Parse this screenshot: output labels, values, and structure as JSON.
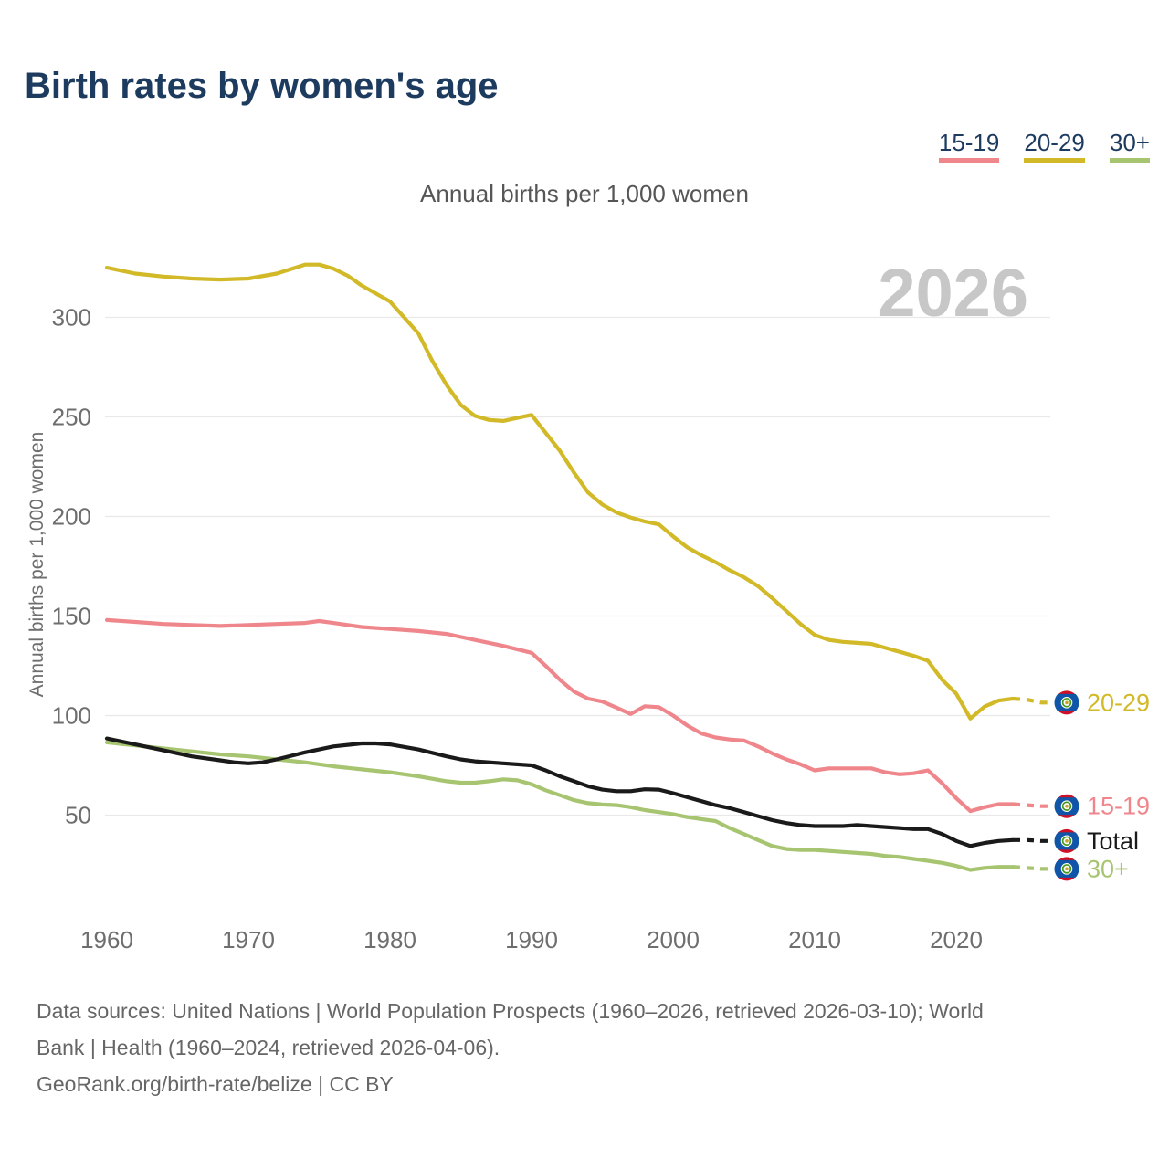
{
  "header": {
    "title": "Birth rates by women's age",
    "subtitle": "Annual births per 1,000 women"
  },
  "legend": {
    "items": [
      {
        "label": "15-19",
        "color": "#ef868b"
      },
      {
        "label": "20-29",
        "color": "#d2b927"
      },
      {
        "label": "30+",
        "color": "#a7c471"
      }
    ]
  },
  "watermark": "2026",
  "footer": {
    "sources_line1": "Data sources: United Nations | World Population Prospects (1960–2026, retrieved 2026-03-10); World",
    "sources_line2": "Bank | Health (1960–2024, retrieved 2026-04-06).",
    "attribution": "GeoRank.org/birth-rate/belize | CC BY"
  },
  "chart_data": {
    "type": "line",
    "title": "Birth rates by women's age",
    "subtitle": "Annual births per 1,000 women",
    "ylabel": "Annual births per 1,000 women",
    "xlabel": "",
    "x_ticks": [
      1960,
      1970,
      1980,
      1990,
      2000,
      2010,
      2020
    ],
    "y_ticks": [
      50,
      100,
      150,
      200,
      250,
      300
    ],
    "xlim": [
      1960,
      2026
    ],
    "ylim": [
      0,
      340
    ],
    "grid": "horizontal",
    "legend_position": "top-right",
    "projection_dashed_from": 2024,
    "endpoint_marker": "belize-flag-roundel",
    "flag_colors": {
      "blue": "#1155a8",
      "red": "#ce1126",
      "ring_green": "#44991c",
      "white": "#ffffff",
      "center": "#c8a22a"
    },
    "grid_color": "#e9e9e9",
    "tick_color": "#6e6e6e",
    "watermark_color": "#c7c7c7",
    "series": [
      {
        "name": "15-19",
        "color": "#ef868b",
        "end_label": "15-19",
        "points": [
          [
            1960,
            148
          ],
          [
            1962,
            147
          ],
          [
            1964,
            146
          ],
          [
            1966,
            145.5
          ],
          [
            1968,
            145
          ],
          [
            1970,
            145.5
          ],
          [
            1972,
            146
          ],
          [
            1974,
            146.5
          ],
          [
            1975,
            147.5
          ],
          [
            1976,
            146.5
          ],
          [
            1978,
            144.5
          ],
          [
            1980,
            143.5
          ],
          [
            1982,
            142.5
          ],
          [
            1984,
            141
          ],
          [
            1986,
            138
          ],
          [
            1988,
            135
          ],
          [
            1990,
            131.5
          ],
          [
            1991,
            125
          ],
          [
            1992,
            118
          ],
          [
            1993,
            112
          ],
          [
            1994,
            108.5
          ],
          [
            1995,
            107
          ],
          [
            1996,
            104
          ],
          [
            1997,
            100.8
          ],
          [
            1998,
            104.7
          ],
          [
            1999,
            104.2
          ],
          [
            2000,
            100
          ],
          [
            2001,
            95
          ],
          [
            2002,
            91
          ],
          [
            2003,
            89
          ],
          [
            2004,
            88
          ],
          [
            2005,
            87.5
          ],
          [
            2006,
            84.5
          ],
          [
            2007,
            81
          ],
          [
            2008,
            78
          ],
          [
            2009,
            75.5
          ],
          [
            2010,
            72.5
          ],
          [
            2011,
            73.5
          ],
          [
            2012,
            73.5
          ],
          [
            2013,
            73.5
          ],
          [
            2014,
            73.5
          ],
          [
            2015,
            71.5
          ],
          [
            2016,
            70.5
          ],
          [
            2017,
            71
          ],
          [
            2018,
            72.5
          ],
          [
            2019,
            66
          ],
          [
            2020,
            58.5
          ],
          [
            2021,
            52
          ],
          [
            2022,
            54
          ],
          [
            2023,
            55.5
          ],
          [
            2024,
            55.5
          ],
          [
            2025,
            55
          ],
          [
            2026,
            54.5
          ]
        ]
      },
      {
        "name": "20-29",
        "color": "#d2b927",
        "end_label": "20-29",
        "points": [
          [
            1960,
            325
          ],
          [
            1962,
            322
          ],
          [
            1964,
            320.5
          ],
          [
            1966,
            319.5
          ],
          [
            1968,
            319
          ],
          [
            1970,
            319.5
          ],
          [
            1972,
            322
          ],
          [
            1974,
            326.5
          ],
          [
            1975,
            326.5
          ],
          [
            1976,
            324.5
          ],
          [
            1977,
            321
          ],
          [
            1978,
            316
          ],
          [
            1980,
            308
          ],
          [
            1982,
            292
          ],
          [
            1983,
            278
          ],
          [
            1984,
            266
          ],
          [
            1985,
            256
          ],
          [
            1986,
            250.5
          ],
          [
            1987,
            248.5
          ],
          [
            1988,
            248
          ],
          [
            1989,
            249.5
          ],
          [
            1990,
            251
          ],
          [
            1991,
            242
          ],
          [
            1992,
            233
          ],
          [
            1993,
            222
          ],
          [
            1994,
            212
          ],
          [
            1995,
            206
          ],
          [
            1996,
            202
          ],
          [
            1997,
            199.5
          ],
          [
            1998,
            197.5
          ],
          [
            1999,
            196
          ],
          [
            2000,
            190
          ],
          [
            2001,
            184.5
          ],
          [
            2002,
            180.5
          ],
          [
            2003,
            177
          ],
          [
            2004,
            173
          ],
          [
            2005,
            169.5
          ],
          [
            2006,
            165
          ],
          [
            2007,
            159
          ],
          [
            2008,
            152.5
          ],
          [
            2009,
            146
          ],
          [
            2010,
            140.5
          ],
          [
            2011,
            138
          ],
          [
            2012,
            137
          ],
          [
            2013,
            136.5
          ],
          [
            2014,
            136
          ],
          [
            2015,
            134
          ],
          [
            2016,
            132
          ],
          [
            2017,
            130
          ],
          [
            2018,
            127.5
          ],
          [
            2019,
            118
          ],
          [
            2020,
            111
          ],
          [
            2021,
            98.5
          ],
          [
            2022,
            104.5
          ],
          [
            2023,
            107.5
          ],
          [
            2024,
            108.5
          ],
          [
            2025,
            108
          ],
          [
            2026,
            106.5
          ]
        ]
      },
      {
        "name": "30+",
        "color": "#a7c471",
        "end_label": "30+",
        "points": [
          [
            1960,
            86.5
          ],
          [
            1962,
            85
          ],
          [
            1964,
            83.5
          ],
          [
            1966,
            82
          ],
          [
            1968,
            80.5
          ],
          [
            1970,
            79.5
          ],
          [
            1972,
            78
          ],
          [
            1974,
            76.5
          ],
          [
            1976,
            74.5
          ],
          [
            1978,
            73
          ],
          [
            1980,
            71.5
          ],
          [
            1982,
            69.5
          ],
          [
            1984,
            67
          ],
          [
            1985,
            66.3
          ],
          [
            1986,
            66.3
          ],
          [
            1987,
            67
          ],
          [
            1988,
            68
          ],
          [
            1989,
            67.5
          ],
          [
            1990,
            65.5
          ],
          [
            1991,
            62.5
          ],
          [
            1992,
            60
          ],
          [
            1993,
            57.5
          ],
          [
            1994,
            56
          ],
          [
            1995,
            55.3
          ],
          [
            1996,
            55
          ],
          [
            1997,
            54
          ],
          [
            1998,
            52.5
          ],
          [
            1999,
            51.5
          ],
          [
            2000,
            50.5
          ],
          [
            2001,
            49
          ],
          [
            2002,
            48
          ],
          [
            2003,
            47
          ],
          [
            2004,
            43.5
          ],
          [
            2005,
            40.5
          ],
          [
            2006,
            37.5
          ],
          [
            2007,
            34.5
          ],
          [
            2008,
            33
          ],
          [
            2009,
            32.5
          ],
          [
            2010,
            32.5
          ],
          [
            2011,
            32
          ],
          [
            2012,
            31.5
          ],
          [
            2013,
            31
          ],
          [
            2014,
            30.5
          ],
          [
            2015,
            29.5
          ],
          [
            2016,
            29
          ],
          [
            2017,
            28
          ],
          [
            2018,
            27
          ],
          [
            2019,
            26
          ],
          [
            2020,
            24.5
          ],
          [
            2021,
            22.5
          ],
          [
            2022,
            23.5
          ],
          [
            2023,
            24
          ],
          [
            2024,
            24
          ],
          [
            2025,
            23.5
          ],
          [
            2026,
            23
          ]
        ]
      },
      {
        "name": "Total",
        "color": "#1a1a1a",
        "end_label": "Total",
        "points": [
          [
            1960,
            88.5
          ],
          [
            1962,
            85.5
          ],
          [
            1964,
            82.5
          ],
          [
            1966,
            79.5
          ],
          [
            1968,
            77.5
          ],
          [
            1969,
            76.5
          ],
          [
            1970,
            76
          ],
          [
            1971,
            76.5
          ],
          [
            1972,
            78
          ],
          [
            1974,
            81.5
          ],
          [
            1976,
            84.5
          ],
          [
            1978,
            86
          ],
          [
            1979,
            86
          ],
          [
            1980,
            85.5
          ],
          [
            1982,
            83
          ],
          [
            1984,
            79.5
          ],
          [
            1985,
            78
          ],
          [
            1986,
            77
          ],
          [
            1988,
            76
          ],
          [
            1990,
            75
          ],
          [
            1991,
            72.5
          ],
          [
            1992,
            69.5
          ],
          [
            1993,
            67
          ],
          [
            1994,
            64.5
          ],
          [
            1995,
            62.8
          ],
          [
            1996,
            62
          ],
          [
            1997,
            62
          ],
          [
            1998,
            63
          ],
          [
            1999,
            62.8
          ],
          [
            2000,
            61
          ],
          [
            2001,
            59
          ],
          [
            2002,
            57
          ],
          [
            2003,
            55
          ],
          [
            2004,
            53.5
          ],
          [
            2005,
            51.5
          ],
          [
            2006,
            49.5
          ],
          [
            2007,
            47.5
          ],
          [
            2008,
            46
          ],
          [
            2009,
            45
          ],
          [
            2010,
            44.5
          ],
          [
            2011,
            44.5
          ],
          [
            2012,
            44.5
          ],
          [
            2013,
            45
          ],
          [
            2014,
            44.5
          ],
          [
            2015,
            44
          ],
          [
            2016,
            43.5
          ],
          [
            2017,
            43
          ],
          [
            2018,
            43
          ],
          [
            2019,
            40.5
          ],
          [
            2020,
            37
          ],
          [
            2021,
            34.5
          ],
          [
            2022,
            36
          ],
          [
            2023,
            37
          ],
          [
            2024,
            37.5
          ],
          [
            2025,
            37.5
          ],
          [
            2026,
            37
          ]
        ]
      }
    ]
  }
}
